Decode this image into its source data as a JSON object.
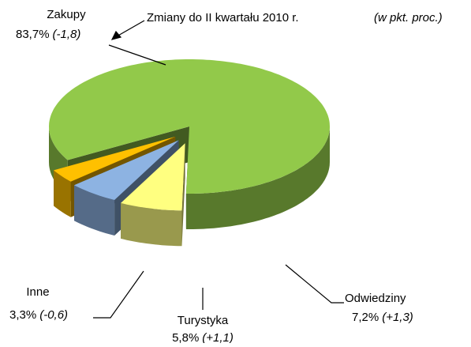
{
  "chart_data": {
    "type": "pie",
    "title": "Zmiany do II kwartału 2010 r.",
    "subtitle": "(w pkt. proc.)",
    "categories": [
      "Zakupy",
      "Odwiedziny",
      "Turystyka",
      "Inne"
    ],
    "values": [
      83.7,
      7.2,
      5.8,
      3.3
    ],
    "value_labels": [
      "83,7%",
      "7,2%",
      "5,8%",
      "3,3%"
    ],
    "changes": [
      -1.8,
      1.3,
      1.1,
      -0.6
    ],
    "change_labels": [
      "(-1,8)",
      "(+1,3)",
      "(+1,1)",
      "(-0,6)"
    ],
    "colors": [
      "#92c94a",
      "#ffff80",
      "#8db3e2",
      "#ffc000"
    ]
  }
}
